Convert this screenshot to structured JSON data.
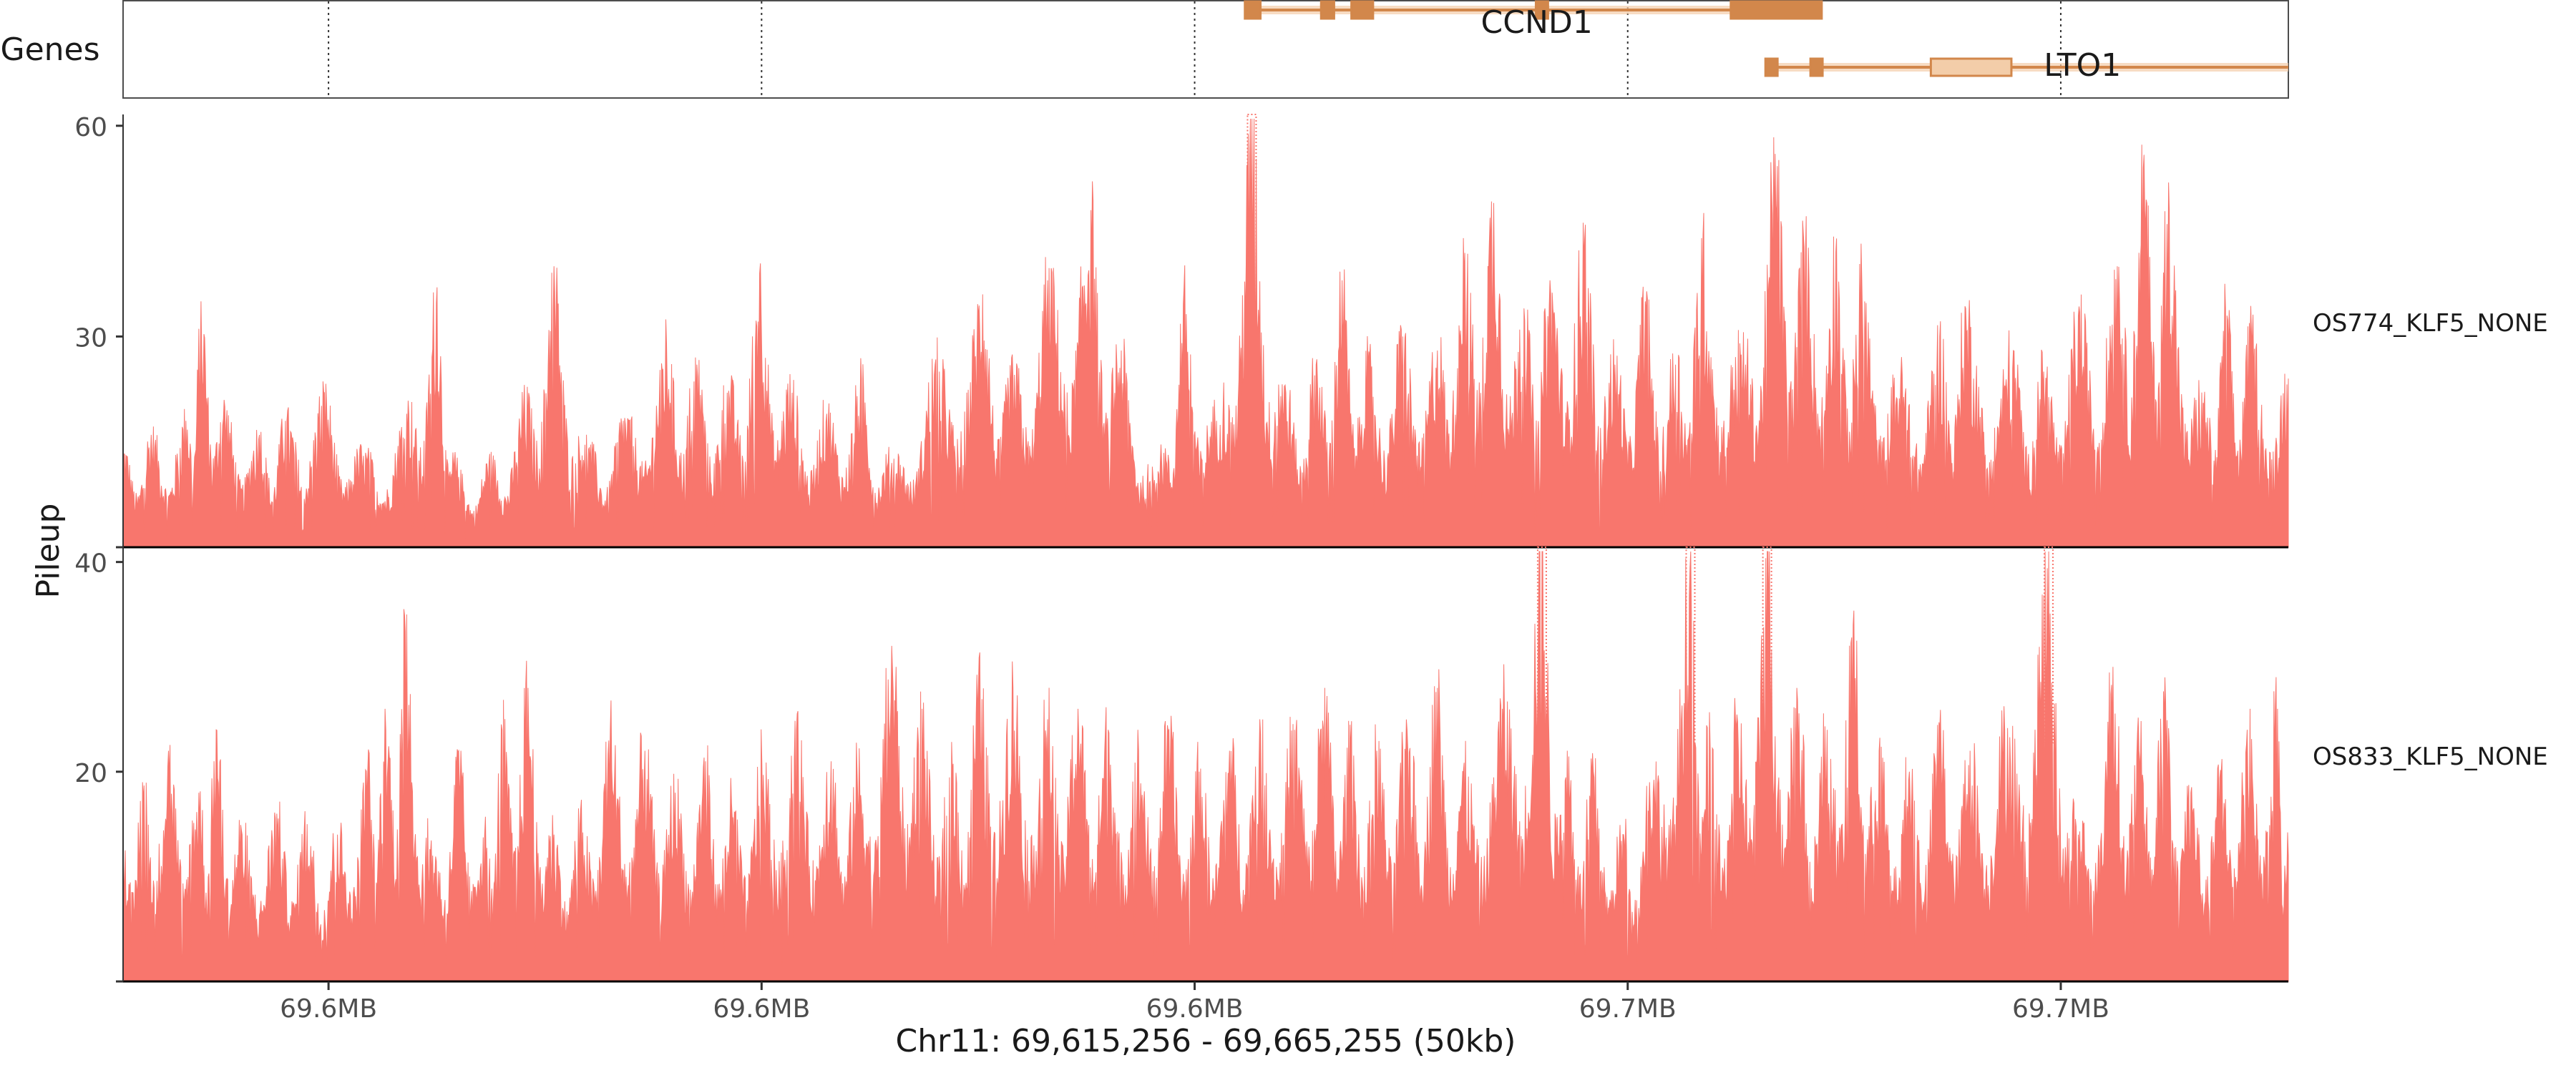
{
  "chart_data": {
    "type": "area",
    "region_label": "Chr11: 69,615,256 - 69,665,255 (50kb)",
    "xlim": [
      69615256,
      69665255
    ],
    "x_ticks": [
      {
        "pos": 69620000,
        "label": "69.6MB"
      },
      {
        "pos": 69630000,
        "label": "69.6MB"
      },
      {
        "pos": 69640000,
        "label": "69.6MB"
      },
      {
        "pos": 69650000,
        "label": "69.7MB"
      },
      {
        "pos": 69660000,
        "label": "69.7MB"
      }
    ],
    "ylabel": "Pileup",
    "gene_track": {
      "label": "Genes",
      "color": "#d2874b",
      "fill": "#f3cda9",
      "genes": [
        {
          "name": "CCND1",
          "start": 69641160,
          "end": 69654480,
          "exons": [
            [
              69641160,
              69641520
            ],
            [
              69642920,
              69643220
            ],
            [
              69643620,
              69644120
            ],
            [
              69647880,
              69648160
            ],
            [
              69652380,
              69654480
            ]
          ],
          "thick": [
            69652400,
            69654480
          ]
        },
        {
          "name": "LTO1",
          "start": 69653180,
          "end": 69665255,
          "exons": [
            [
              69653180,
              69653460
            ],
            [
              69654220,
              69654500
            ],
            [
              69657000,
              69658860
            ]
          ],
          "thick": [
            69657000,
            69658860
          ]
        }
      ]
    },
    "fill_color": "#f8766d",
    "series": [
      {
        "name": "OS774_KLF5_NONE",
        "ylim": [
          0,
          61
        ],
        "y_ticks": [
          30,
          60
        ],
        "clipped": [
          69641320
        ],
        "peaks": [
          [
            69615256,
            14
          ],
          [
            69615900,
            16
          ],
          [
            69616700,
            18
          ],
          [
            69617060,
            35
          ],
          [
            69617600,
            20
          ],
          [
            69618400,
            16
          ],
          [
            69619000,
            18
          ],
          [
            69619900,
            22
          ],
          [
            69620800,
            13
          ],
          [
            69621800,
            19
          ],
          [
            69622500,
            37
          ],
          [
            69623000,
            10
          ],
          [
            69623700,
            12
          ],
          [
            69624500,
            20
          ],
          [
            69625200,
            40
          ],
          [
            69626000,
            14
          ],
          [
            69626800,
            18
          ],
          [
            69627800,
            29
          ],
          [
            69628500,
            26
          ],
          [
            69629200,
            22
          ],
          [
            69629950,
            39
          ],
          [
            69630700,
            22
          ],
          [
            69631500,
            19
          ],
          [
            69632300,
            24
          ],
          [
            69633000,
            12
          ],
          [
            69634000,
            26
          ],
          [
            69635100,
            36
          ],
          [
            69635800,
            24
          ],
          [
            69636600,
            38
          ],
          [
            69637600,
            48
          ],
          [
            69638300,
            28
          ],
          [
            69639200,
            12
          ],
          [
            69639750,
            37
          ],
          [
            69640500,
            18
          ],
          [
            69641320,
            61
          ],
          [
            69642100,
            22
          ],
          [
            69642800,
            26
          ],
          [
            69643400,
            38
          ],
          [
            69644000,
            26
          ],
          [
            69644800,
            30
          ],
          [
            69645600,
            28
          ],
          [
            69646200,
            44
          ],
          [
            69646900,
            49
          ],
          [
            69647600,
            34
          ],
          [
            69648200,
            38
          ],
          [
            69649000,
            44
          ],
          [
            69649700,
            26
          ],
          [
            69650400,
            35
          ],
          [
            69651100,
            26
          ],
          [
            69651700,
            44
          ],
          [
            69652600,
            27
          ],
          [
            69653400,
            56
          ],
          [
            69654100,
            42
          ],
          [
            69654800,
            42
          ],
          [
            69655400,
            38
          ],
          [
            69656300,
            24
          ],
          [
            69657200,
            30
          ],
          [
            69657800,
            34
          ],
          [
            69658900,
            28
          ],
          [
            69659600,
            25
          ],
          [
            69660400,
            33
          ],
          [
            69661300,
            40
          ],
          [
            69661900,
            54
          ],
          [
            69662500,
            48
          ],
          [
            69663300,
            20
          ],
          [
            69663800,
            34
          ],
          [
            69664400,
            30
          ],
          [
            69665255,
            24
          ]
        ]
      },
      {
        "name": "OS833_KLF5_NONE",
        "ylim": [
          0,
          41
        ],
        "y_ticks": [
          20,
          40
        ],
        "clipped": [
          69648020,
          69651450,
          69653220,
          69659720
        ],
        "peaks": [
          [
            69615256,
            14
          ],
          [
            69615700,
            19
          ],
          [
            69616300,
            22
          ],
          [
            69617000,
            18
          ],
          [
            69617400,
            24
          ],
          [
            69618000,
            14
          ],
          [
            69618800,
            16
          ],
          [
            69619500,
            15
          ],
          [
            69620200,
            14
          ],
          [
            69620900,
            20
          ],
          [
            69621300,
            26
          ],
          [
            69621800,
            35
          ],
          [
            69622400,
            12
          ],
          [
            69623000,
            22
          ],
          [
            69623600,
            14
          ],
          [
            69624000,
            24
          ],
          [
            69624600,
            28
          ],
          [
            69625200,
            14
          ],
          [
            69625800,
            15
          ],
          [
            69626500,
            24
          ],
          [
            69627300,
            22
          ],
          [
            69628000,
            18
          ],
          [
            69628700,
            21
          ],
          [
            69629300,
            17
          ],
          [
            69630000,
            21
          ],
          [
            69630800,
            24
          ],
          [
            69631600,
            21
          ],
          [
            69632200,
            20
          ],
          [
            69633000,
            32
          ],
          [
            69633700,
            26
          ],
          [
            69634400,
            20
          ],
          [
            69635000,
            28
          ],
          [
            69635800,
            28
          ],
          [
            69636600,
            25
          ],
          [
            69637300,
            26
          ],
          [
            69638000,
            24
          ],
          [
            69638700,
            22
          ],
          [
            69639400,
            24
          ],
          [
            69640100,
            20
          ],
          [
            69640800,
            22
          ],
          [
            69641500,
            25
          ],
          [
            69642300,
            24
          ],
          [
            69643000,
            28
          ],
          [
            69643600,
            22
          ],
          [
            69644200,
            22
          ],
          [
            69644900,
            24
          ],
          [
            69645600,
            28
          ],
          [
            69646200,
            20
          ],
          [
            69647100,
            26
          ],
          [
            69648020,
            41
          ],
          [
            69648600,
            22
          ],
          [
            69649200,
            20
          ],
          [
            69649900,
            14
          ],
          [
            69650500,
            19
          ],
          [
            69651450,
            41
          ],
          [
            69651900,
            22
          ],
          [
            69652500,
            24
          ],
          [
            69653220,
            41
          ],
          [
            69653900,
            28
          ],
          [
            69654600,
            24
          ],
          [
            69655200,
            34
          ],
          [
            69655800,
            22
          ],
          [
            69656500,
            20
          ],
          [
            69657200,
            24
          ],
          [
            69657900,
            22
          ],
          [
            69658700,
            24
          ],
          [
            69659720,
            41
          ],
          [
            69660400,
            14
          ],
          [
            69661200,
            30
          ],
          [
            69661800,
            22
          ],
          [
            69662400,
            29
          ],
          [
            69663000,
            18
          ],
          [
            69663700,
            20
          ],
          [
            69664300,
            24
          ],
          [
            69665000,
            26
          ],
          [
            69665255,
            12
          ]
        ]
      }
    ]
  }
}
